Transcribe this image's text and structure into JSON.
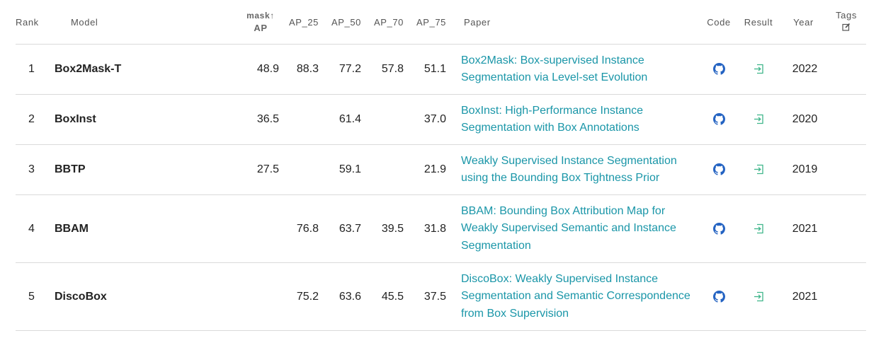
{
  "headers": {
    "rank": "Rank",
    "model": "Model",
    "mask_ap_top": "mask",
    "mask_ap_arrow": "↑",
    "mask_ap_bot": "AP",
    "ap25": "AP_25",
    "ap50": "AP_50",
    "ap70": "AP_70",
    "ap75": "AP_75",
    "paper": "Paper",
    "code": "Code",
    "result": "Result",
    "year": "Year",
    "tags": "Tags",
    "tags_icon": "edit-icon"
  },
  "rows": [
    {
      "rank": "1",
      "model": "Box2Mask-T",
      "mask_ap": "48.9",
      "ap25": "88.3",
      "ap50": "77.2",
      "ap70": "57.8",
      "ap75": "51.1",
      "paper": "Box2Mask: Box-supervised Instance Segmentation via Level-set Evolution",
      "code_icon": "github-icon",
      "result_icon": "result-enter-icon",
      "year": "2022"
    },
    {
      "rank": "2",
      "model": "BoxInst",
      "mask_ap": "36.5",
      "ap25": "",
      "ap50": "61.4",
      "ap70": "",
      "ap75": "37.0",
      "paper": "BoxInst: High-Performance Instance Segmentation with Box Annotations",
      "code_icon": "github-icon",
      "result_icon": "result-enter-icon",
      "year": "2020"
    },
    {
      "rank": "3",
      "model": "BBTP",
      "mask_ap": "27.5",
      "ap25": "",
      "ap50": "59.1",
      "ap70": "",
      "ap75": "21.9",
      "paper": "Weakly Supervised Instance Segmentation using the Bounding Box Tightness Prior",
      "code_icon": "github-icon",
      "result_icon": "result-enter-icon",
      "year": "2019"
    },
    {
      "rank": "4",
      "model": "BBAM",
      "mask_ap": "",
      "ap25": "76.8",
      "ap50": "63.7",
      "ap70": "39.5",
      "ap75": "31.8",
      "paper": "BBAM: Bounding Box Attribution Map for Weakly Supervised Semantic and Instance Segmentation",
      "code_icon": "github-icon",
      "result_icon": "result-enter-icon",
      "year": "2021"
    },
    {
      "rank": "5",
      "model": "DiscoBox",
      "mask_ap": "",
      "ap25": "75.2",
      "ap50": "63.6",
      "ap70": "45.5",
      "ap75": "37.5",
      "paper": "DiscoBox: Weakly Supervised Instance Segmentation and Semantic Correspondence from Box Supervision",
      "code_icon": "github-icon",
      "result_icon": "result-enter-icon",
      "year": "2021"
    }
  ],
  "colors": {
    "link": "#1a96a8",
    "github": "#2463c2",
    "result": "#3fb58a",
    "border": "#dadada"
  }
}
